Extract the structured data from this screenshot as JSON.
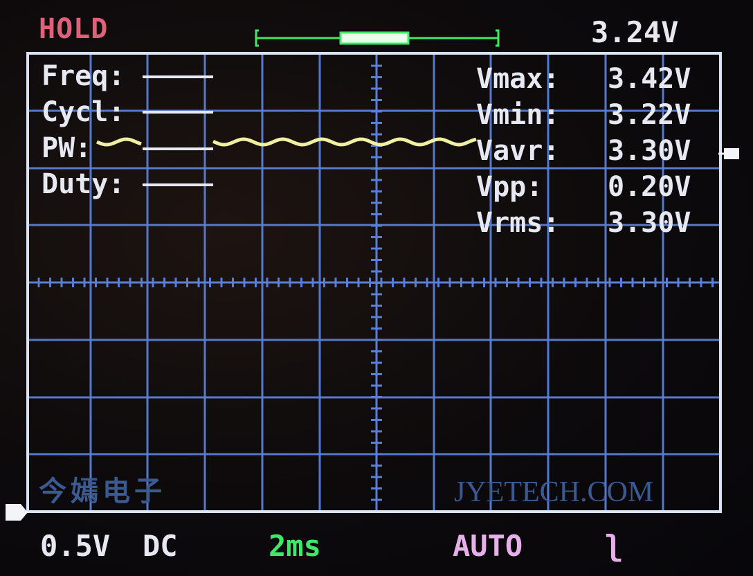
{
  "status": {
    "hold": "HOLD",
    "trigger_level": "3.24V"
  },
  "measurements": [
    {
      "label": "Freq:",
      "value": ""
    },
    {
      "label": "Cycl:",
      "value": ""
    },
    {
      "label": "PW:",
      "value": ""
    },
    {
      "label": "Duty:",
      "value": ""
    }
  ],
  "voltages": [
    {
      "label": "Vmax:",
      "value": "3.42V"
    },
    {
      "label": "Vmin:",
      "value": "3.22V"
    },
    {
      "label": "Vavr:",
      "value": "3.30V"
    },
    {
      "label": "Vpp:",
      "value": "0.20V"
    },
    {
      "label": "Vrms:",
      "value": "3.30V"
    }
  ],
  "watermark": {
    "chinese": "今嫣电子",
    "english": "JYETECH.COM"
  },
  "bottom": {
    "vdiv": "0.5V",
    "coupling": "DC",
    "timebase": "2ms",
    "trigger_mode": "AUTO",
    "trigger_edge": "ʅ"
  },
  "colors": {
    "grid": "#5a7fd6",
    "frame": "#d8e4f4",
    "trace": "#f0f0a0",
    "hold": "#e0607a",
    "timebase": "#3ee868",
    "trigger": "#e8b0ea"
  }
}
